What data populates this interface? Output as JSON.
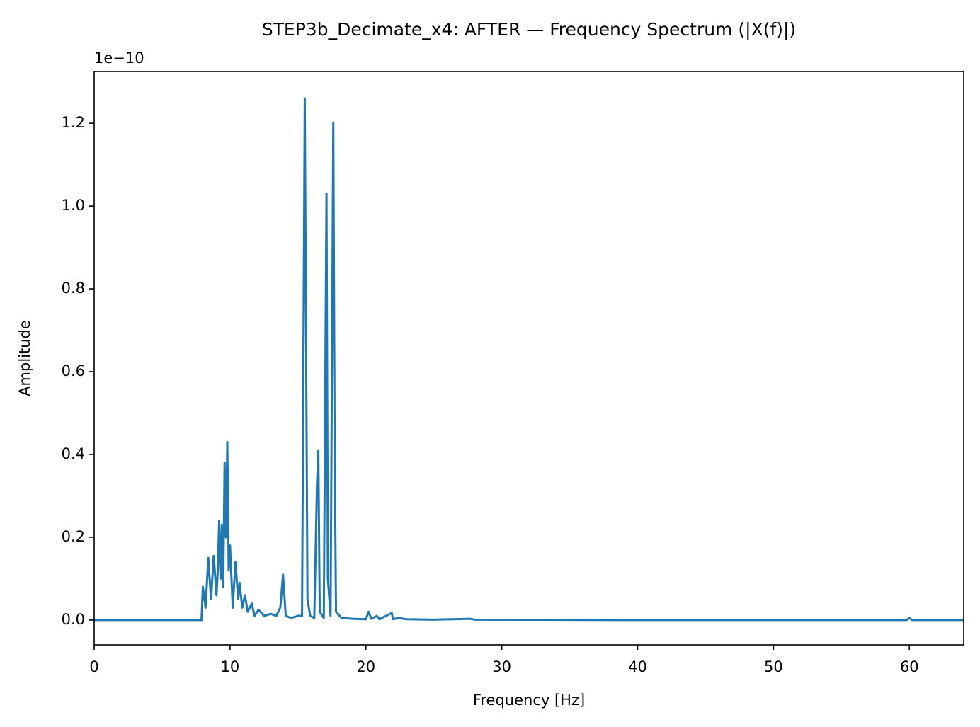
{
  "chart_data": {
    "type": "line",
    "title": "STEP3b_Decimate_x4: AFTER — Frequency Spectrum (|X(f)|)",
    "x_label": "Frequency [Hz]",
    "y_label": "Amplitude",
    "y_offset_label": "1e−10",
    "color": "#1f77b4",
    "x": [
      0,
      7.9,
      8.0,
      8.2,
      8.4,
      8.6,
      8.8,
      9.0,
      9.1,
      9.2,
      9.3,
      9.4,
      9.5,
      9.6,
      9.7,
      9.8,
      9.9,
      10.0,
      10.2,
      10.4,
      10.6,
      10.7,
      10.9,
      11.1,
      11.3,
      11.6,
      11.8,
      12.1,
      12.5,
      13.0,
      13.4,
      13.7,
      13.9,
      14.1,
      14.5,
      15.0,
      15.3,
      15.5,
      15.6,
      15.7,
      15.9,
      16.2,
      16.4,
      16.5,
      16.6,
      16.9,
      17.1,
      17.2,
      17.4,
      17.6,
      17.7,
      17.8,
      18.2,
      19.0,
      20.0,
      20.2,
      20.4,
      20.8,
      21.0,
      21.9,
      22.0,
      22.4,
      23,
      25,
      27.7,
      28,
      40,
      59.8,
      60,
      60.2,
      64
    ],
    "values": [
      0,
      0,
      0.08,
      0.03,
      0.15,
      0.05,
      0.155,
      0.06,
      0.12,
      0.24,
      0.1,
      0.23,
      0.08,
      0.38,
      0.2,
      0.43,
      0.12,
      0.18,
      0.03,
      0.14,
      0.05,
      0.09,
      0.03,
      0.06,
      0.02,
      0.04,
      0.01,
      0.025,
      0.01,
      0.015,
      0.01,
      0.03,
      0.11,
      0.01,
      0.005,
      0.01,
      0.01,
      1.26,
      0.66,
      0.05,
      0.01,
      0.005,
      0.33,
      0.41,
      0.02,
      0.005,
      1.03,
      0.1,
      0.01,
      1.2,
      0.43,
      0.02,
      0.005,
      0.003,
      0.002,
      0.02,
      0.003,
      0.01,
      0.002,
      0.017,
      0.002,
      0.005,
      0.002,
      0.001,
      0.003,
      0.001,
      0,
      0,
      0.005,
      0,
      0
    ],
    "xlim": [
      0,
      64
    ],
    "xticks": [
      0,
      10,
      20,
      30,
      40,
      50,
      60
    ],
    "ylim": [
      -0.06,
      1.325
    ],
    "yticks": [
      {
        "value": 0,
        "label": "0.0"
      },
      0.2,
      0.4,
      0.6,
      0.8,
      {
        "value": 1,
        "label": "1.0"
      },
      1.2
    ]
  }
}
